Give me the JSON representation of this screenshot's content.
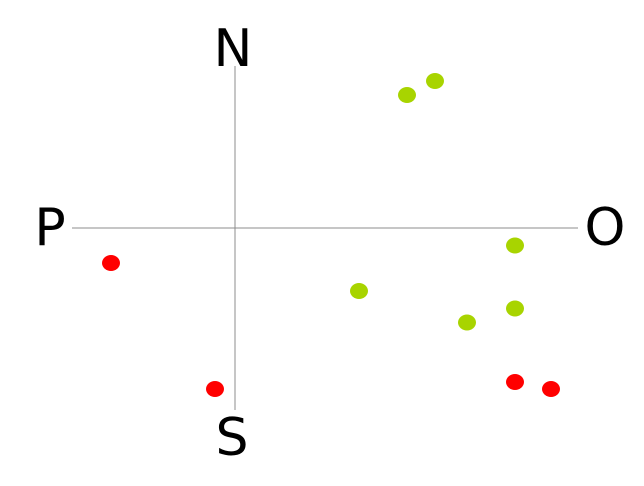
{
  "axes": {
    "north_label": "N",
    "south_label": "S",
    "west_label": "P",
    "east_label": "O"
  },
  "colors": {
    "axis": "#8c8c8c",
    "group_a": "#a8d400",
    "group_b": "#ff0000"
  },
  "chart_data": {
    "type": "scatter",
    "xlim": [
      -3.5,
      7.5
    ],
    "ylim": [
      -4.5,
      4.5
    ],
    "grid": false,
    "series": [
      {
        "color": "#a8d400",
        "points": [
          {
            "x": 4.3,
            "y": 3.8
          },
          {
            "x": 5.0,
            "y": 4.2
          },
          {
            "x": 7.0,
            "y": -0.5
          },
          {
            "x": 3.1,
            "y": -1.8
          },
          {
            "x": 5.8,
            "y": -2.7
          },
          {
            "x": 7.0,
            "y": -2.3
          }
        ]
      },
      {
        "color": "#ff0000",
        "points": [
          {
            "x": -3.1,
            "y": -1.0
          },
          {
            "x": -0.5,
            "y": -4.6
          },
          {
            "x": 7.0,
            "y": -4.4
          },
          {
            "x": 7.9,
            "y": -4.6
          }
        ]
      }
    ]
  }
}
